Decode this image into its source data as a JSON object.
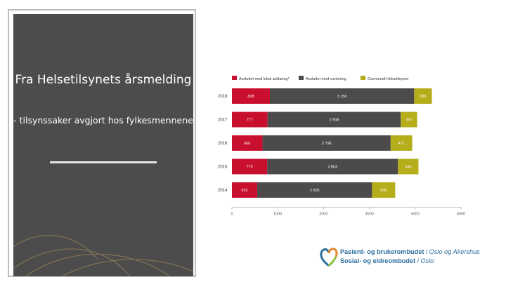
{
  "slide": {
    "title": "Fra Helsetilsynets årsmelding",
    "subtitle": "- tilsynssaker avgjort hos fylkesmennene"
  },
  "logo": {
    "line1_bold": "Pasient- og brukerombudet",
    "line1_light": "i Oslo og Akershus",
    "line2_bold": "Sosial- og eldreombudet",
    "line2_light": "i Oslo"
  },
  "colors": {
    "panel": "#4d4c4c",
    "series1": "#c8102e",
    "series2": "#4d4a4c",
    "series3": "#b5ad1a",
    "logo_blue": "#2e6f9e",
    "logo_green": "#8cbf3f",
    "logo_orange": "#e08a2a"
  },
  "chart_data": {
    "type": "bar",
    "orientation": "horizontal",
    "stacked": true,
    "categories": [
      "2018",
      "2017",
      "2016",
      "2015",
      "2014"
    ],
    "series": [
      {
        "name": "Avsluttet med lokal avklaring*",
        "values": [
          828,
          777,
          668,
          770,
          553
        ],
        "labels": [
          "828",
          "777",
          "668",
          "770",
          "553"
        ]
      },
      {
        "name": "Avsluttet med vurdering",
        "values": [
          3150,
          2908,
          2796,
          2853,
          2505
        ],
        "labels": [
          "3 150",
          "2 908",
          "2 796",
          "2 853",
          "2 505"
        ]
      },
      {
        "name": "Oversendt Helsetilsynet",
        "values": [
          385,
          357,
          471,
          448,
          506
        ],
        "labels": [
          "385",
          "357",
          "471",
          "448",
          "506"
        ]
      }
    ],
    "xlim": [
      0,
      5000
    ],
    "xticks": [
      0,
      1000,
      2000,
      3000,
      4000,
      5000
    ],
    "xtick_labels": [
      "0",
      "1000",
      "2000",
      "3000",
      "4000",
      "5000"
    ],
    "legend_position": "top"
  }
}
